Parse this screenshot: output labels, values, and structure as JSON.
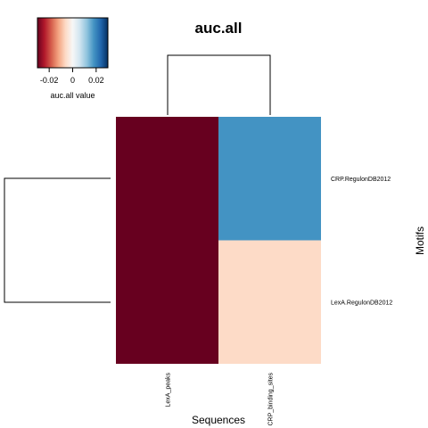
{
  "chart_data": {
    "type": "heatmap",
    "title": "auc.all",
    "xlabel": "Sequences",
    "ylabel": "Motifs",
    "columns": [
      "LexA_peaks",
      "CRP_binding_sites"
    ],
    "rows": [
      "CRP.RegulonDB2012",
      "LexA.RegulonDB2012"
    ],
    "values": [
      [
        -0.03,
        0.018
      ],
      [
        -0.03,
        -0.006
      ]
    ],
    "color_key": {
      "title": "auc.all value",
      "range": [
        -0.03,
        0.03
      ],
      "ticks": [
        -0.02,
        0,
        0.02
      ],
      "tick_labels": [
        "-0.02",
        "0",
        "0.02"
      ],
      "palette": [
        "#67001F",
        "#B2182B",
        "#D6604D",
        "#F4A582",
        "#FDDBC7",
        "#F7F7F7",
        "#D1E5F0",
        "#92C5DE",
        "#4393C3",
        "#2166AC",
        "#053061"
      ]
    },
    "row_dendrogram": true,
    "column_dendrogram": true
  }
}
